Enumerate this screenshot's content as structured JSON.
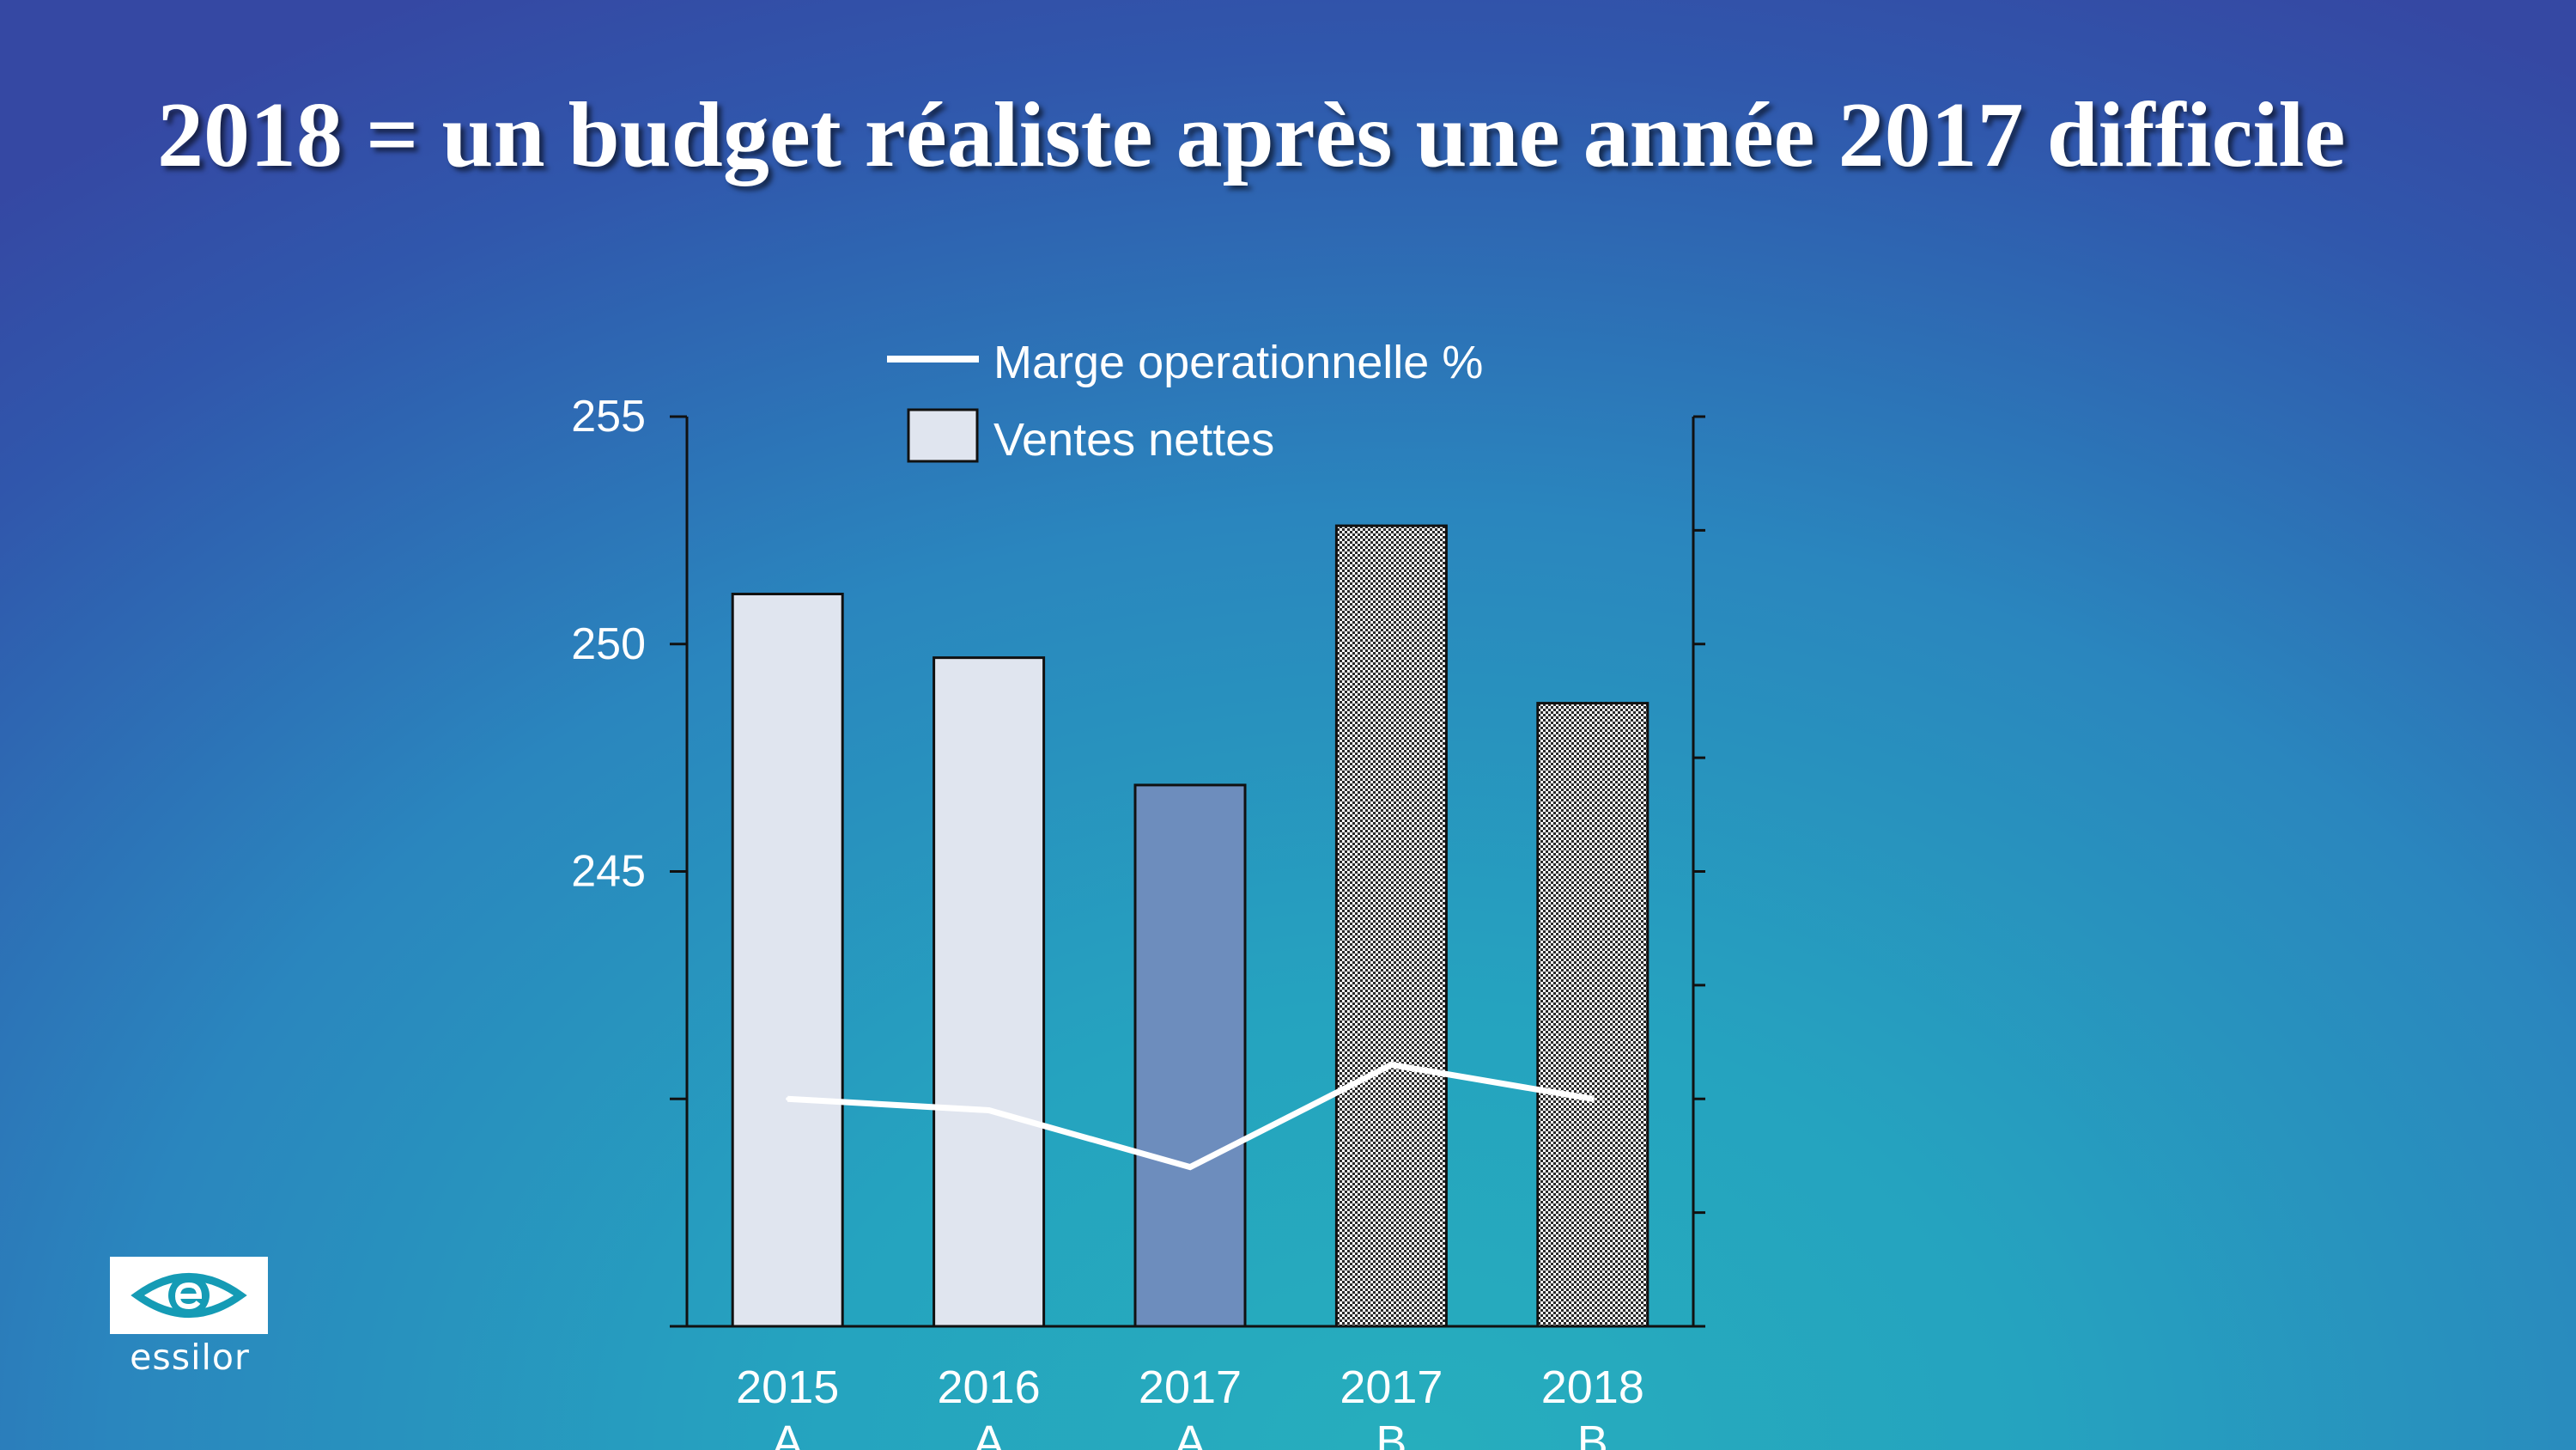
{
  "slide": {
    "title": "2018 = un budget réaliste après une année 2017 difficile"
  },
  "logo": {
    "text": "essilor",
    "icon": "essilor-eye-logo-icon"
  },
  "colors": {
    "actual_bar": "#e0e5ef",
    "actual_2017_bar": "#6d8dbd",
    "budget_bar": "checkered-black-white",
    "line": "#ffffff",
    "text": "#ffffff"
  },
  "chart_data": {
    "type": "bar",
    "title": "",
    "xlabel": "",
    "ylabel": "",
    "ylim": [
      235,
      255
    ],
    "y_ticks": [
      255,
      250,
      245
    ],
    "categories": [
      [
        "2015",
        "A"
      ],
      [
        "2016",
        "A"
      ],
      [
        "2017",
        "A"
      ],
      [
        "2017",
        "B"
      ],
      [
        "2018",
        "B"
      ]
    ],
    "series": [
      {
        "name": "Ventes nettes",
        "type": "bar",
        "axis": "left",
        "values": [
          251.1,
          249.7,
          246.9,
          252.6,
          248.7
        ]
      },
      {
        "name": "Marge operationnelle %",
        "type": "line",
        "axis": "right",
        "values": [
          2.0,
          1.9,
          1.4,
          2.3,
          2.0
        ]
      }
    ],
    "right_axis": {
      "ylim": [
        0,
        8
      ],
      "tick_labels_shown": false
    },
    "legend": {
      "placement": "top",
      "entries": [
        "Marge operationnelle %",
        "Ventes nettes"
      ]
    },
    "grid": false
  }
}
